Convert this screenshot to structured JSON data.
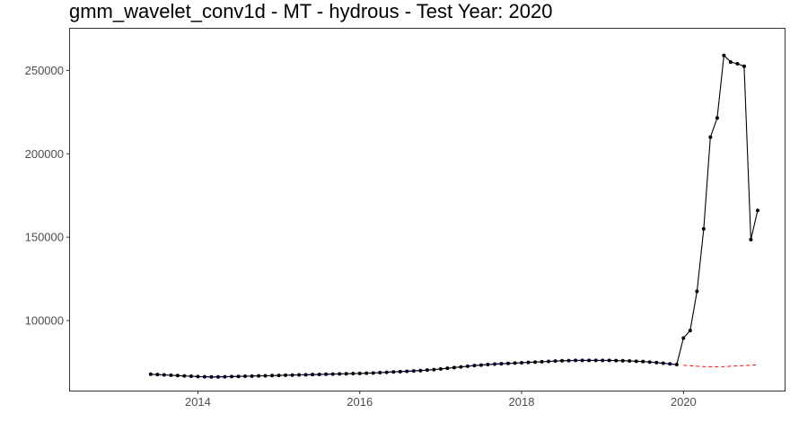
{
  "chart_data": {
    "type": "line",
    "title": "gmm_wavelet_conv1d - MT - hydrous - Test Year: 2020",
    "xlabel": "",
    "ylabel": "",
    "xlim": [
      2012.42,
      2021.25
    ],
    "ylim": [
      58000,
      275000
    ],
    "grid": false,
    "x_ticks": [
      2014,
      2016,
      2018,
      2020
    ],
    "x_tick_labels": [
      "2014",
      "2016",
      "2018",
      "2020"
    ],
    "y_ticks": [
      100000,
      150000,
      200000,
      250000
    ],
    "y_tick_labels": [
      "100000",
      "150000",
      "200000",
      "250000"
    ],
    "colors": {
      "actual": "#000000",
      "fitted": "#00008b",
      "forecast": "#ff0000"
    },
    "series": [
      {
        "key": "actual",
        "style": "line-points",
        "x": [
          2013.417,
          2013.5,
          2013.583,
          2013.667,
          2013.75,
          2013.833,
          2013.917,
          2014.0,
          2014.083,
          2014.167,
          2014.25,
          2014.333,
          2014.417,
          2014.5,
          2014.583,
          2014.667,
          2014.75,
          2014.833,
          2014.917,
          2015.0,
          2015.083,
          2015.167,
          2015.25,
          2015.333,
          2015.417,
          2015.5,
          2015.583,
          2015.667,
          2015.75,
          2015.833,
          2015.917,
          2016.0,
          2016.083,
          2016.167,
          2016.25,
          2016.333,
          2016.417,
          2016.5,
          2016.583,
          2016.667,
          2016.75,
          2016.833,
          2016.917,
          2017.0,
          2017.083,
          2017.167,
          2017.25,
          2017.333,
          2017.417,
          2017.5,
          2017.583,
          2017.667,
          2017.75,
          2017.833,
          2017.917,
          2018.0,
          2018.083,
          2018.167,
          2018.25,
          2018.333,
          2018.417,
          2018.5,
          2018.583,
          2018.667,
          2018.75,
          2018.833,
          2018.917,
          2019.0,
          2019.083,
          2019.167,
          2019.25,
          2019.333,
          2019.417,
          2019.5,
          2019.583,
          2019.667,
          2019.75,
          2019.833,
          2019.917,
          2020.0,
          2020.083,
          2020.167,
          2020.25,
          2020.333,
          2020.417,
          2020.5,
          2020.583,
          2020.667,
          2020.75,
          2020.833,
          2020.917
        ],
        "y": [
          67800,
          67600,
          67400,
          67200,
          67000,
          66800,
          66600,
          66400,
          66300,
          66200,
          66200,
          66300,
          66400,
          66500,
          66600,
          66700,
          66800,
          66900,
          67000,
          67100,
          67200,
          67300,
          67400,
          67500,
          67600,
          67700,
          67800,
          67900,
          68000,
          68100,
          68200,
          68300,
          68400,
          68600,
          68800,
          69000,
          69200,
          69400,
          69600,
          69800,
          70000,
          70300,
          70600,
          71000,
          71400,
          71800,
          72200,
          72600,
          73000,
          73300,
          73600,
          73900,
          74100,
          74300,
          74500,
          74700,
          74900,
          75100,
          75300,
          75500,
          75700,
          75900,
          76000,
          76100,
          76100,
          76100,
          76100,
          76100,
          76100,
          76000,
          75900,
          75800,
          75600,
          75400,
          75100,
          74800,
          74400,
          74000,
          73600,
          89500,
          94000,
          117500,
          155000,
          210000,
          221500,
          259000,
          255000,
          254000,
          252500,
          148500,
          166000
        ]
      },
      {
        "key": "fitted",
        "style": "dashed",
        "x": [
          2013.417,
          2013.5,
          2013.583,
          2013.667,
          2013.75,
          2013.833,
          2013.917,
          2014.0,
          2014.083,
          2014.167,
          2014.25,
          2014.333,
          2014.417,
          2014.5,
          2014.583,
          2014.667,
          2014.75,
          2014.833,
          2014.917,
          2015.0,
          2015.083,
          2015.167,
          2015.25,
          2015.333,
          2015.417,
          2015.5,
          2015.583,
          2015.667,
          2015.75,
          2015.833,
          2015.917,
          2016.0,
          2016.083,
          2016.167,
          2016.25,
          2016.333,
          2016.417,
          2016.5,
          2016.583,
          2016.667,
          2016.75,
          2016.833,
          2016.917,
          2017.0,
          2017.083,
          2017.167,
          2017.25,
          2017.333,
          2017.417,
          2017.5,
          2017.583,
          2017.667,
          2017.75,
          2017.833,
          2017.917,
          2018.0,
          2018.083,
          2018.167,
          2018.25,
          2018.333,
          2018.417,
          2018.5,
          2018.583,
          2018.667,
          2018.75,
          2018.833,
          2018.917,
          2019.0,
          2019.083,
          2019.167,
          2019.25,
          2019.333,
          2019.417,
          2019.5,
          2019.583,
          2019.667,
          2019.75,
          2019.833,
          2019.917
        ],
        "y": [
          67800,
          67600,
          67400,
          67200,
          67000,
          66800,
          66600,
          66400,
          66300,
          66200,
          66200,
          66300,
          66400,
          66500,
          66600,
          66700,
          66800,
          66900,
          67000,
          67100,
          67200,
          67300,
          67400,
          67500,
          67600,
          67700,
          67800,
          67900,
          68000,
          68100,
          68200,
          68300,
          68400,
          68600,
          68800,
          69000,
          69200,
          69400,
          69600,
          69800,
          70000,
          70300,
          70600,
          71000,
          71400,
          71800,
          72200,
          72600,
          73000,
          73300,
          73600,
          73900,
          74100,
          74300,
          74500,
          74700,
          74900,
          75100,
          75300,
          75500,
          75700,
          75900,
          76000,
          76100,
          76100,
          76100,
          76100,
          76100,
          76100,
          76000,
          75900,
          75800,
          75600,
          75400,
          75100,
          74800,
          74400,
          74000,
          73600
        ]
      },
      {
        "key": "forecast",
        "style": "dashed",
        "x": [
          2020.0,
          2020.083,
          2020.167,
          2020.25,
          2020.333,
          2020.417,
          2020.5,
          2020.583,
          2020.667,
          2020.75,
          2020.833,
          2020.917
        ],
        "y": [
          73200,
          72900,
          72600,
          72400,
          72300,
          72300,
          72400,
          72600,
          72800,
          73000,
          73200,
          73500
        ]
      }
    ]
  }
}
